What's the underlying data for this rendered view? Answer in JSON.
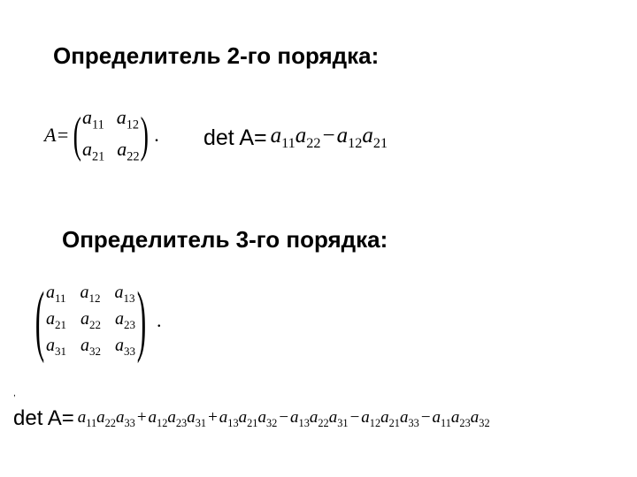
{
  "headings": {
    "order2": "Определитель 2-го порядка:",
    "order3": "Определитель 3-го порядка:"
  },
  "matrix2": {
    "lhs": "A=",
    "rows": [
      [
        "a",
        "11",
        "a",
        "12"
      ],
      [
        "a",
        "21",
        "a",
        "22"
      ]
    ],
    "suffix": "."
  },
  "det2": {
    "prefix": "det A=",
    "terms": [
      {
        "op": "",
        "cells": [
          [
            "a",
            "11"
          ],
          [
            "a",
            "22"
          ]
        ]
      },
      {
        "op": "−",
        "cells": [
          [
            "a",
            "12"
          ],
          [
            "a",
            "21"
          ]
        ]
      }
    ]
  },
  "matrix3": {
    "rows": [
      [
        "a",
        "11",
        "a",
        "12",
        "a",
        "13"
      ],
      [
        "a",
        "21",
        "a",
        "22",
        "a",
        "23"
      ],
      [
        "a",
        "31",
        "a",
        "32",
        "a",
        "33"
      ]
    ],
    "suffix": "."
  },
  "det3": {
    "prefix": "det A=",
    "terms": [
      {
        "op": "",
        "cells": [
          [
            "a",
            "11"
          ],
          [
            "a",
            "22"
          ],
          [
            "a",
            "33"
          ]
        ]
      },
      {
        "op": "+",
        "cells": [
          [
            "a",
            "12"
          ],
          [
            "a",
            "23"
          ],
          [
            "a",
            "31"
          ]
        ]
      },
      {
        "op": "+",
        "cells": [
          [
            "a",
            "13"
          ],
          [
            "a",
            "21"
          ],
          [
            "a",
            "32"
          ]
        ]
      },
      {
        "op": "−",
        "cells": [
          [
            "a",
            "13"
          ],
          [
            "a",
            "22"
          ],
          [
            "a",
            "31"
          ]
        ]
      },
      {
        "op": "−",
        "cells": [
          [
            "a",
            "12"
          ],
          [
            "a",
            "21"
          ],
          [
            "a",
            "33"
          ]
        ]
      },
      {
        "op": "−",
        "cells": [
          [
            "a",
            "11"
          ],
          [
            "a",
            "23"
          ],
          [
            "a",
            "32"
          ]
        ]
      }
    ]
  },
  "comma": ","
}
